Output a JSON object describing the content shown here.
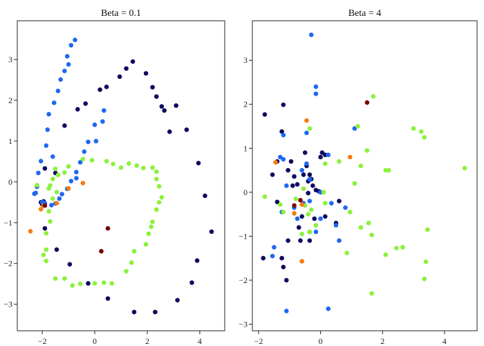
{
  "figure": {
    "background": "#ffffff"
  },
  "chart_data": [
    {
      "type": "scatter",
      "title": "Beta = 0.1",
      "xlabel": "",
      "ylabel": "",
      "xlim": [
        -2.95,
        4.95
      ],
      "ylim": [
        -3.65,
        3.95
      ],
      "xticks": [
        -2,
        0,
        2,
        4
      ],
      "yticks": [
        -3,
        -2,
        -1,
        0,
        1,
        2,
        3
      ],
      "grid": false,
      "legend": "none",
      "series": [
        {
          "color": "#0d0b5e",
          "points": [
            [
              -1.5,
              0.22
            ],
            [
              -1.15,
              1.38
            ],
            [
              -0.65,
              1.78
            ],
            [
              -0.35,
              1.92
            ],
            [
              0.2,
              2.26
            ],
            [
              0.45,
              2.33
            ],
            [
              0.95,
              2.58
            ],
            [
              1.2,
              2.78
            ],
            [
              1.45,
              2.95
            ],
            [
              1.95,
              2.66
            ],
            [
              2.2,
              2.32
            ],
            [
              2.35,
              2.09
            ],
            [
              2.55,
              1.85
            ],
            [
              2.65,
              1.75
            ],
            [
              2.85,
              1.23
            ],
            [
              3.1,
              1.87
            ],
            [
              3.5,
              1.28
            ],
            [
              3.95,
              0.46
            ],
            [
              4.2,
              -0.34
            ],
            [
              4.45,
              -1.22
            ],
            [
              3.9,
              -1.93
            ],
            [
              3.7,
              -2.47
            ],
            [
              3.15,
              -2.9
            ],
            [
              2.3,
              -3.19
            ],
            [
              1.5,
              -3.19
            ],
            [
              0.5,
              -2.86
            ],
            [
              -0.25,
              -2.49
            ],
            [
              -0.95,
              -2.02
            ],
            [
              -1.45,
              -1.66
            ],
            [
              -1.9,
              -1.14
            ],
            [
              -1.9,
              0.33
            ],
            [
              -2.0,
              -0.55
            ],
            [
              -2.05,
              -0.5
            ],
            [
              -1.95,
              -0.48
            ]
          ]
        },
        {
          "color": "#1f68f0",
          "points": [
            [
              -0.75,
              3.48
            ],
            [
              -0.9,
              3.35
            ],
            [
              -1.05,
              3.08
            ],
            [
              -1.0,
              2.88
            ],
            [
              -1.15,
              2.72
            ],
            [
              -1.3,
              2.51
            ],
            [
              -1.4,
              2.23
            ],
            [
              -1.55,
              1.94
            ],
            [
              -1.75,
              1.66
            ],
            [
              -1.8,
              1.28
            ],
            [
              -1.85,
              0.89
            ],
            [
              -1.6,
              0.62
            ],
            [
              -2.05,
              0.51
            ],
            [
              -2.15,
              0.22
            ],
            [
              -2.2,
              -0.12
            ],
            [
              -2.25,
              -0.27
            ],
            [
              -2.3,
              -0.29
            ],
            [
              0.35,
              1.75
            ],
            [
              0.3,
              1.48
            ],
            [
              0.0,
              1.4
            ],
            [
              0.05,
              1.0
            ],
            [
              -0.25,
              0.98
            ],
            [
              -0.4,
              0.74
            ],
            [
              -0.55,
              0.48
            ],
            [
              -0.7,
              0.24
            ],
            [
              -0.7,
              0.09
            ],
            [
              -0.9,
              0.02
            ],
            [
              -1.05,
              -0.17
            ],
            [
              -1.25,
              -0.3
            ],
            [
              -1.35,
              -0.41
            ],
            [
              -1.5,
              -0.53
            ],
            [
              -1.65,
              -0.57
            ],
            [
              -2.0,
              -0.5
            ],
            [
              -1.9,
              -0.52
            ]
          ]
        },
        {
          "color": "#8bf13b",
          "points": [
            [
              -1.0,
              0.38
            ],
            [
              -0.45,
              0.56
            ],
            [
              -0.1,
              0.53
            ],
            [
              0.45,
              0.51
            ],
            [
              0.7,
              0.44
            ],
            [
              1.0,
              0.35
            ],
            [
              1.3,
              0.45
            ],
            [
              1.6,
              0.4
            ],
            [
              1.85,
              0.34
            ],
            [
              2.2,
              0.35
            ],
            [
              2.35,
              0.25
            ],
            [
              2.35,
              0.07
            ],
            [
              2.45,
              -0.11
            ],
            [
              2.55,
              -0.38
            ],
            [
              2.45,
              -0.5
            ],
            [
              2.35,
              -0.68
            ],
            [
              2.2,
              -0.98
            ],
            [
              2.15,
              -1.1
            ],
            [
              2.05,
              -1.27
            ],
            [
              1.95,
              -1.53
            ],
            [
              1.5,
              -1.7
            ],
            [
              1.4,
              -1.98
            ],
            [
              1.2,
              -2.19
            ],
            [
              0.65,
              -2.49
            ],
            [
              0.35,
              -2.47
            ],
            [
              0.0,
              -2.49
            ],
            [
              -0.55,
              -2.5
            ],
            [
              -0.85,
              -2.54
            ],
            [
              -1.15,
              -2.37
            ],
            [
              -1.5,
              -2.37
            ],
            [
              -1.85,
              -1.94
            ],
            [
              -1.95,
              -1.79
            ],
            [
              -1.85,
              -1.66
            ],
            [
              -1.85,
              -1.26
            ],
            [
              -1.7,
              -0.97
            ],
            [
              -1.75,
              -0.72
            ],
            [
              -1.6,
              -0.41
            ],
            [
              -1.45,
              -0.25
            ],
            [
              -1.7,
              -0.09
            ],
            [
              -1.75,
              -0.16
            ],
            [
              -1.6,
              0.07
            ],
            [
              -1.4,
              0.17
            ],
            [
              -1.5,
              0.32
            ],
            [
              -1.15,
              0.23
            ],
            [
              -2.2,
              -0.08
            ]
          ]
        },
        {
          "color": "#f57c10",
          "points": [
            [
              -2.45,
              -1.21
            ],
            [
              -2.05,
              -0.67
            ],
            [
              -1.95,
              -0.58
            ],
            [
              -1.45,
              -0.52
            ],
            [
              -1.0,
              -0.16
            ],
            [
              -0.45,
              -0.03
            ]
          ]
        },
        {
          "color": "#7a0404",
          "points": [
            [
              -1.9,
              -0.58
            ],
            [
              0.5,
              -1.14
            ],
            [
              0.25,
              -1.7
            ]
          ]
        }
      ]
    },
    {
      "type": "scatter",
      "title": "Beta = 4",
      "xlabel": "",
      "ylabel": "",
      "xlim": [
        -2.2,
        5.05
      ],
      "ylim": [
        -3.15,
        3.9
      ],
      "xticks": [
        -2,
        0,
        2,
        4
      ],
      "yticks": [
        -3,
        -2,
        -1,
        0,
        1,
        2,
        3
      ],
      "grid": false,
      "legend": "none",
      "series": [
        {
          "color": "#0d0b5e",
          "points": [
            [
              -1.8,
              1.77
            ],
            [
              -1.2,
              1.99
            ],
            [
              -1.25,
              1.38
            ],
            [
              -1.55,
              0.4
            ],
            [
              -1.4,
              0.7
            ],
            [
              -1.05,
              0.5
            ],
            [
              -0.95,
              0.7
            ],
            [
              -0.85,
              0.36
            ],
            [
              -0.75,
              0.18
            ],
            [
              -0.5,
              0.9
            ],
            [
              -0.45,
              0.6
            ],
            [
              -0.35,
              0.4
            ],
            [
              -0.25,
              0.15
            ],
            [
              -0.4,
              -0.02
            ],
            [
              -0.15,
              0.05
            ],
            [
              0.05,
              0.9
            ],
            [
              0.0,
              0.8
            ],
            [
              0.15,
              0.85
            ],
            [
              -0.05,
              0.02
            ],
            [
              0.15,
              -0.55
            ],
            [
              0.6,
              -0.2
            ],
            [
              0.5,
              -0.7
            ],
            [
              -0.2,
              -0.6
            ],
            [
              -0.6,
              -0.55
            ],
            [
              -0.7,
              -0.8
            ],
            [
              -0.65,
              -1.1
            ],
            [
              -0.35,
              -1.1
            ],
            [
              -0.35,
              -0.9
            ],
            [
              -1.05,
              -1.1
            ],
            [
              -1.25,
              -1.5
            ],
            [
              -1.2,
              -1.7
            ],
            [
              -1.1,
              -2.0
            ],
            [
              -1.85,
              -1.5
            ],
            [
              -1.4,
              -0.22
            ],
            [
              -0.3,
              0.3
            ],
            [
              -0.9,
              0.15
            ],
            [
              -0.55,
              0.4
            ],
            [
              -0.4,
              0.25
            ]
          ]
        },
        {
          "color": "#1f68f0",
          "points": [
            [
              -0.3,
              3.58
            ],
            [
              -0.15,
              2.4
            ],
            [
              -0.15,
              2.24
            ],
            [
              -1.2,
              1.3
            ],
            [
              -1.3,
              0.8
            ],
            [
              -1.2,
              0.75
            ],
            [
              -0.45,
              1.35
            ],
            [
              0.25,
              0.85
            ],
            [
              1.1,
              1.45
            ],
            [
              -1.1,
              0.15
            ],
            [
              -0.6,
              0.5
            ],
            [
              -0.35,
              0.3
            ],
            [
              0.0,
              0.0
            ],
            [
              -0.55,
              -0.25
            ],
            [
              -0.85,
              -0.35
            ],
            [
              -1.25,
              -0.45
            ],
            [
              -0.35,
              -0.2
            ],
            [
              0.0,
              -0.6
            ],
            [
              0.35,
              -0.25
            ],
            [
              0.5,
              -0.75
            ],
            [
              0.6,
              -1.1
            ],
            [
              -0.15,
              -0.9
            ],
            [
              -0.75,
              -0.6
            ],
            [
              -1.5,
              -1.25
            ],
            [
              -1.55,
              -1.45
            ],
            [
              -1.1,
              -2.7
            ],
            [
              0.25,
              -2.65
            ],
            [
              0.8,
              -0.35
            ],
            [
              -0.45,
              0.65
            ]
          ]
        },
        {
          "color": "#8bf13b",
          "points": [
            [
              1.7,
              2.18
            ],
            [
              1.2,
              1.5
            ],
            [
              -0.35,
              1.45
            ],
            [
              0.6,
              0.7
            ],
            [
              1.5,
              0.95
            ],
            [
              1.3,
              0.6
            ],
            [
              2.1,
              0.5
            ],
            [
              2.2,
              0.5
            ],
            [
              3.0,
              1.45
            ],
            [
              3.25,
              1.38
            ],
            [
              3.35,
              1.25
            ],
            [
              4.65,
              0.55
            ],
            [
              1.1,
              0.2
            ],
            [
              -0.55,
              0.08
            ],
            [
              -0.8,
              -0.15
            ],
            [
              -0.5,
              -0.3
            ],
            [
              -0.4,
              -0.5
            ],
            [
              0.1,
              0.0
            ],
            [
              0.15,
              -0.25
            ],
            [
              0.95,
              -0.45
            ],
            [
              1.3,
              -0.8
            ],
            [
              1.55,
              -0.7
            ],
            [
              1.65,
              -0.97
            ],
            [
              2.45,
              -1.27
            ],
            [
              2.65,
              -1.25
            ],
            [
              2.1,
              -1.42
            ],
            [
              3.45,
              -0.85
            ],
            [
              3.4,
              -1.58
            ],
            [
              3.35,
              -1.97
            ],
            [
              1.65,
              -2.3
            ],
            [
              -1.8,
              -0.1
            ],
            [
              -1.3,
              -0.28
            ],
            [
              -1.2,
              -0.45
            ],
            [
              -0.35,
              -0.9
            ],
            [
              -0.6,
              -0.95
            ],
            [
              0.85,
              -1.38
            ],
            [
              -0.15,
              -0.75
            ],
            [
              0.15,
              0.65
            ],
            [
              -0.3,
              -0.4
            ]
          ]
        },
        {
          "color": "#f57c10",
          "points": [
            [
              -0.45,
              1.63
            ],
            [
              -1.45,
              0.68
            ],
            [
              0.95,
              0.8
            ],
            [
              -0.85,
              -0.48
            ],
            [
              -0.6,
              -0.28
            ],
            [
              -0.6,
              -1.57
            ]
          ]
        },
        {
          "color": "#7a0404",
          "points": [
            [
              1.5,
              2.04
            ],
            [
              -0.85,
              -0.3
            ],
            [
              -0.65,
              -0.18
            ]
          ]
        }
      ]
    }
  ]
}
